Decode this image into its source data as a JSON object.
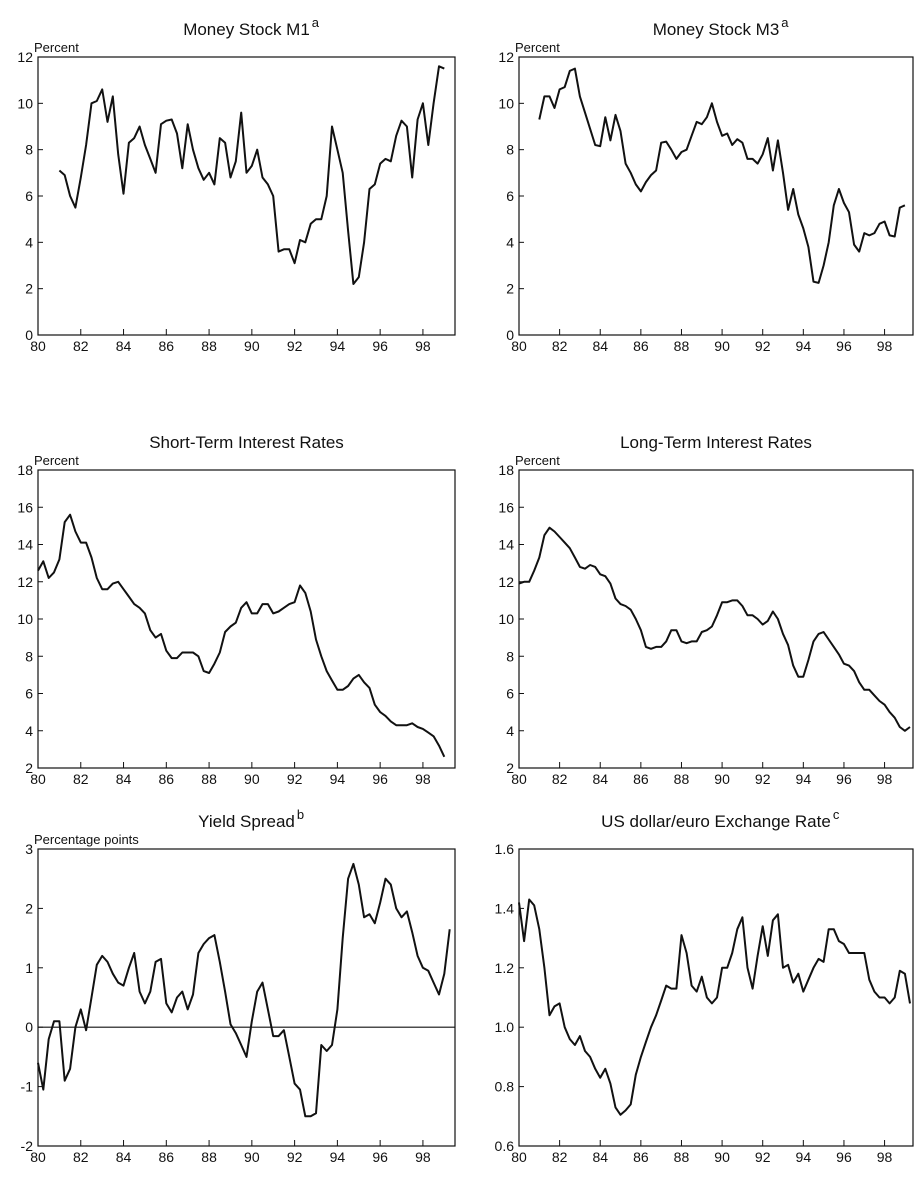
{
  "chart_data": [
    {
      "type": "line",
      "title": "Money Stock M1",
      "title_note": "a",
      "y_label": "Percent",
      "color": "#111111",
      "x": [
        81,
        81.25,
        81.5,
        81.75,
        82,
        82.25,
        82.5,
        82.75,
        83,
        83.25,
        83.5,
        83.75,
        84,
        84.25,
        84.5,
        84.75,
        85,
        85.25,
        85.5,
        85.75,
        86,
        86.25,
        86.5,
        86.75,
        87,
        87.25,
        87.5,
        87.75,
        88,
        88.25,
        88.5,
        88.75,
        89,
        89.25,
        89.5,
        89.75,
        90,
        90.25,
        90.5,
        90.75,
        91,
        91.25,
        91.5,
        91.75,
        92,
        92.25,
        92.5,
        92.75,
        93,
        93.25,
        93.5,
        93.75,
        94,
        94.25,
        94.5,
        94.75,
        95,
        95.25,
        95.5,
        95.75,
        96,
        96.25,
        96.5,
        96.75,
        97,
        97.25,
        97.5,
        97.75,
        98,
        98.25,
        98.5,
        98.75,
        99
      ],
      "values": [
        7.1,
        6.9,
        6.0,
        5.5,
        6.8,
        8.2,
        10.0,
        10.1,
        10.6,
        9.2,
        10.3,
        7.8,
        6.1,
        8.3,
        8.5,
        9.0,
        8.2,
        7.6,
        7.0,
        9.1,
        9.25,
        9.3,
        8.7,
        7.2,
        9.1,
        8.0,
        7.2,
        6.7,
        7.0,
        6.5,
        8.5,
        8.3,
        6.8,
        7.5,
        9.6,
        7.0,
        7.3,
        8.0,
        6.8,
        6.5,
        6.0,
        3.6,
        3.7,
        3.7,
        3.1,
        4.1,
        4.0,
        4.8,
        5.0,
        5.0,
        6.0,
        9.0,
        8.0,
        7.0,
        4.5,
        2.2,
        2.5,
        4.0,
        6.3,
        6.5,
        7.4,
        7.6,
        7.5,
        8.6,
        9.25,
        9.0,
        6.8,
        9.3,
        10.0,
        8.2,
        10.0,
        11.6,
        11.5
      ],
      "xlim": [
        80,
        99.5
      ],
      "xticks": [
        80,
        82,
        84,
        86,
        88,
        90,
        92,
        94,
        96,
        98
      ],
      "ylim": [
        0,
        12
      ],
      "yticks": [
        0,
        2,
        4,
        6,
        8,
        10,
        12
      ]
    },
    {
      "type": "line",
      "title": "Money Stock M3",
      "title_note": "a",
      "y_label": "Percent",
      "color": "#111111",
      "x": [
        81,
        81.25,
        81.5,
        81.75,
        82,
        82.25,
        82.5,
        82.75,
        83,
        83.25,
        83.5,
        83.75,
        84,
        84.25,
        84.5,
        84.75,
        85,
        85.25,
        85.5,
        85.75,
        86,
        86.25,
        86.5,
        86.75,
        87,
        87.25,
        87.5,
        87.75,
        88,
        88.25,
        88.5,
        88.75,
        89,
        89.25,
        89.5,
        89.75,
        90,
        90.25,
        90.5,
        90.75,
        91,
        91.25,
        91.5,
        91.75,
        92,
        92.25,
        92.5,
        92.75,
        93,
        93.25,
        93.5,
        93.75,
        94,
        94.25,
        94.5,
        94.75,
        95,
        95.25,
        95.5,
        95.75,
        96,
        96.25,
        96.5,
        96.75,
        97,
        97.25,
        97.5,
        97.75,
        98,
        98.25,
        98.5,
        98.75,
        99
      ],
      "values": [
        9.3,
        10.3,
        10.3,
        9.8,
        10.6,
        10.7,
        11.4,
        11.5,
        10.3,
        9.6,
        8.9,
        8.2,
        8.15,
        9.4,
        8.4,
        9.5,
        8.8,
        7.4,
        7.0,
        6.5,
        6.2,
        6.6,
        6.9,
        7.1,
        8.3,
        8.35,
        8.0,
        7.6,
        7.9,
        8.0,
        8.6,
        9.2,
        9.1,
        9.4,
        10.0,
        9.2,
        8.6,
        8.7,
        8.2,
        8.45,
        8.3,
        7.6,
        7.6,
        7.4,
        7.8,
        8.5,
        7.1,
        8.4,
        7.0,
        5.4,
        6.3,
        5.2,
        4.6,
        3.8,
        2.3,
        2.25,
        3.0,
        4.0,
        5.6,
        6.3,
        5.7,
        5.3,
        3.9,
        3.6,
        4.4,
        4.3,
        4.4,
        4.8,
        4.9,
        4.3,
        4.25,
        5.5,
        5.6
      ],
      "xlim": [
        80,
        99.4
      ],
      "xticks": [
        80,
        82,
        84,
        86,
        88,
        90,
        92,
        94,
        96,
        98
      ],
      "ylim": [
        0,
        12
      ],
      "yticks": [
        0,
        2,
        4,
        6,
        8,
        10,
        12
      ]
    },
    {
      "type": "line",
      "title": "Short-Term Interest Rates",
      "y_label": "Percent",
      "color": "#111111",
      "x": [
        80,
        80.25,
        80.5,
        80.75,
        81,
        81.25,
        81.5,
        81.75,
        82,
        82.25,
        82.5,
        82.75,
        83,
        83.25,
        83.5,
        83.75,
        84,
        84.25,
        84.5,
        84.75,
        85,
        85.25,
        85.5,
        85.75,
        86,
        86.25,
        86.5,
        86.75,
        87,
        87.25,
        87.5,
        87.75,
        88,
        88.25,
        88.5,
        88.75,
        89,
        89.25,
        89.5,
        89.75,
        90,
        90.25,
        90.5,
        90.75,
        91,
        91.25,
        91.5,
        91.75,
        92,
        92.25,
        92.5,
        92.75,
        93,
        93.25,
        93.5,
        93.75,
        94,
        94.25,
        94.5,
        94.75,
        95,
        95.25,
        95.5,
        95.75,
        96,
        96.25,
        96.5,
        96.75,
        97,
        97.25,
        97.5,
        97.75,
        98,
        98.25,
        98.5,
        98.75,
        99
      ],
      "values": [
        12.6,
        13.1,
        12.2,
        12.5,
        13.2,
        15.2,
        15.6,
        14.7,
        14.1,
        14.1,
        13.3,
        12.2,
        11.6,
        11.6,
        11.9,
        12.0,
        11.6,
        11.2,
        10.8,
        10.6,
        10.3,
        9.4,
        9.0,
        9.2,
        8.3,
        7.9,
        7.9,
        8.2,
        8.2,
        8.2,
        8.0,
        7.2,
        7.1,
        7.6,
        8.2,
        9.3,
        9.6,
        9.8,
        10.6,
        10.9,
        10.3,
        10.3,
        10.8,
        10.8,
        10.3,
        10.4,
        10.6,
        10.8,
        10.9,
        11.8,
        11.4,
        10.4,
        8.9,
        8.0,
        7.2,
        6.7,
        6.2,
        6.2,
        6.4,
        6.8,
        7.0,
        6.6,
        6.3,
        5.4,
        5.0,
        4.8,
        4.5,
        4.3,
        4.3,
        4.3,
        4.4,
        4.2,
        4.1,
        3.9,
        3.7,
        3.2,
        2.6
      ],
      "xlim": [
        80,
        99.5
      ],
      "xticks": [
        80,
        82,
        84,
        86,
        88,
        90,
        92,
        94,
        96,
        98
      ],
      "ylim": [
        2,
        18
      ],
      "yticks": [
        2,
        4,
        6,
        8,
        10,
        12,
        14,
        16,
        18
      ]
    },
    {
      "type": "line",
      "title": "Long-Term Interest Rates",
      "y_label": "Percent",
      "color": "#111111",
      "x": [
        80,
        80.25,
        80.5,
        80.75,
        81,
        81.25,
        81.5,
        81.75,
        82,
        82.25,
        82.5,
        82.75,
        83,
        83.25,
        83.5,
        83.75,
        84,
        84.25,
        84.5,
        84.75,
        85,
        85.25,
        85.5,
        85.75,
        86,
        86.25,
        86.5,
        86.75,
        87,
        87.25,
        87.5,
        87.75,
        88,
        88.25,
        88.5,
        88.75,
        89,
        89.25,
        89.5,
        89.75,
        90,
        90.25,
        90.5,
        90.75,
        91,
        91.25,
        91.5,
        91.75,
        92,
        92.25,
        92.5,
        92.75,
        93,
        93.25,
        93.5,
        93.75,
        94,
        94.25,
        94.5,
        94.75,
        95,
        95.25,
        95.5,
        95.75,
        96,
        96.25,
        96.5,
        96.75,
        97,
        97.25,
        97.5,
        97.75,
        98,
        98.25,
        98.5,
        98.75,
        99,
        99.25
      ],
      "values": [
        11.9,
        12.0,
        12.0,
        12.6,
        13.3,
        14.5,
        14.9,
        14.7,
        14.4,
        14.1,
        13.8,
        13.3,
        12.8,
        12.7,
        12.9,
        12.8,
        12.4,
        12.3,
        11.9,
        11.1,
        10.8,
        10.7,
        10.5,
        10.0,
        9.4,
        8.5,
        8.4,
        8.5,
        8.5,
        8.8,
        9.4,
        9.4,
        8.8,
        8.7,
        8.8,
        8.8,
        9.3,
        9.4,
        9.6,
        10.2,
        10.9,
        10.9,
        11.0,
        11.0,
        10.7,
        10.2,
        10.2,
        10.0,
        9.7,
        9.9,
        10.4,
        10.0,
        9.2,
        8.6,
        7.5,
        6.9,
        6.9,
        7.8,
        8.8,
        9.2,
        9.3,
        8.9,
        8.5,
        8.1,
        7.6,
        7.5,
        7.2,
        6.6,
        6.2,
        6.2,
        5.9,
        5.6,
        5.4,
        5.0,
        4.7,
        4.2,
        4.0,
        4.2
      ],
      "xlim": [
        80,
        99.4
      ],
      "xticks": [
        80,
        82,
        84,
        86,
        88,
        90,
        92,
        94,
        96,
        98
      ],
      "ylim": [
        2,
        18
      ],
      "yticks": [
        2,
        4,
        6,
        8,
        10,
        12,
        14,
        16,
        18
      ]
    },
    {
      "type": "line",
      "title": "Yield Spread",
      "title_note": "b",
      "y_label": "Percentage points",
      "color": "#111111",
      "zero_line": true,
      "x": [
        80,
        80.25,
        80.5,
        80.75,
        81,
        81.25,
        81.5,
        81.75,
        82,
        82.25,
        82.5,
        82.75,
        83,
        83.25,
        83.5,
        83.75,
        84,
        84.25,
        84.5,
        84.75,
        85,
        85.25,
        85.5,
        85.75,
        86,
        86.25,
        86.5,
        86.75,
        87,
        87.25,
        87.5,
        87.75,
        88,
        88.25,
        88.5,
        88.75,
        89,
        89.25,
        89.5,
        89.75,
        90,
        90.25,
        90.5,
        90.75,
        91,
        91.25,
        91.5,
        91.75,
        92,
        92.25,
        92.5,
        92.75,
        93,
        93.25,
        93.5,
        93.75,
        94,
        94.25,
        94.5,
        94.75,
        95,
        95.25,
        95.5,
        95.75,
        96,
        96.25,
        96.5,
        96.75,
        97,
        97.25,
        97.5,
        97.75,
        98,
        98.25,
        98.5,
        98.75,
        99,
        99.25
      ],
      "values": [
        -0.6,
        -1.05,
        -0.2,
        0.1,
        0.1,
        -0.9,
        -0.7,
        0.0,
        0.3,
        -0.05,
        0.5,
        1.05,
        1.2,
        1.1,
        0.9,
        0.75,
        0.7,
        1.0,
        1.25,
        0.6,
        0.4,
        0.6,
        1.1,
        1.15,
        0.4,
        0.25,
        0.5,
        0.6,
        0.3,
        0.55,
        1.25,
        1.4,
        1.5,
        1.55,
        1.1,
        0.6,
        0.05,
        -0.1,
        -0.3,
        -0.5,
        0.1,
        0.6,
        0.75,
        0.3,
        -0.15,
        -0.15,
        -0.05,
        -0.5,
        -0.95,
        -1.05,
        -1.5,
        -1.5,
        -1.45,
        -0.3,
        -0.4,
        -0.3,
        0.3,
        1.5,
        2.5,
        2.75,
        2.4,
        1.85,
        1.9,
        1.75,
        2.1,
        2.5,
        2.4,
        2.0,
        1.85,
        1.95,
        1.6,
        1.2,
        1.0,
        0.95,
        0.75,
        0.55,
        0.9,
        1.65
      ],
      "xlim": [
        80,
        99.5
      ],
      "xticks": [
        80,
        82,
        84,
        86,
        88,
        90,
        92,
        94,
        96,
        98
      ],
      "ylim": [
        -2,
        3
      ],
      "yticks": [
        -2,
        -1,
        0,
        1,
        2,
        3
      ]
    },
    {
      "type": "line",
      "title": "US dollar/euro Exchange Rate",
      "title_note": "c",
      "color": "#111111",
      "x": [
        80,
        80.25,
        80.5,
        80.75,
        81,
        81.25,
        81.5,
        81.75,
        82,
        82.25,
        82.5,
        82.75,
        83,
        83.25,
        83.5,
        83.75,
        84,
        84.25,
        84.5,
        84.75,
        85,
        85.25,
        85.5,
        85.75,
        86,
        86.25,
        86.5,
        86.75,
        87,
        87.25,
        87.5,
        87.75,
        88,
        88.25,
        88.5,
        88.75,
        89,
        89.25,
        89.5,
        89.75,
        90,
        90.25,
        90.5,
        90.75,
        91,
        91.25,
        91.5,
        91.75,
        92,
        92.25,
        92.5,
        92.75,
        93,
        93.25,
        93.5,
        93.75,
        94,
        94.25,
        94.5,
        94.75,
        95,
        95.25,
        95.5,
        95.75,
        96,
        96.25,
        96.5,
        96.75,
        97,
        97.25,
        97.5,
        97.75,
        98,
        98.25,
        98.5,
        98.75,
        99,
        99.25
      ],
      "values": [
        1.42,
        1.29,
        1.43,
        1.41,
        1.33,
        1.2,
        1.04,
        1.07,
        1.08,
        1.0,
        0.96,
        0.94,
        0.97,
        0.92,
        0.9,
        0.86,
        0.83,
        0.86,
        0.81,
        0.73,
        0.705,
        0.72,
        0.74,
        0.84,
        0.9,
        0.95,
        1.0,
        1.04,
        1.09,
        1.14,
        1.13,
        1.13,
        1.31,
        1.25,
        1.14,
        1.12,
        1.17,
        1.1,
        1.08,
        1.1,
        1.2,
        1.2,
        1.25,
        1.33,
        1.37,
        1.2,
        1.13,
        1.24,
        1.34,
        1.24,
        1.36,
        1.38,
        1.2,
        1.21,
        1.15,
        1.18,
        1.12,
        1.16,
        1.2,
        1.23,
        1.22,
        1.33,
        1.33,
        1.29,
        1.28,
        1.25,
        1.25,
        1.25,
        1.25,
        1.16,
        1.12,
        1.1,
        1.1,
        1.08,
        1.1,
        1.19,
        1.18,
        1.08
      ],
      "xlim": [
        80,
        99.4
      ],
      "xticks": [
        80,
        82,
        84,
        86,
        88,
        90,
        92,
        94,
        96,
        98
      ],
      "ylim": [
        0.6,
        1.6
      ],
      "yticks": [
        0.6,
        0.8,
        {
          "value": 1,
          "label": "1.0"
        },
        1.2,
        1.4,
        1.6
      ]
    }
  ]
}
